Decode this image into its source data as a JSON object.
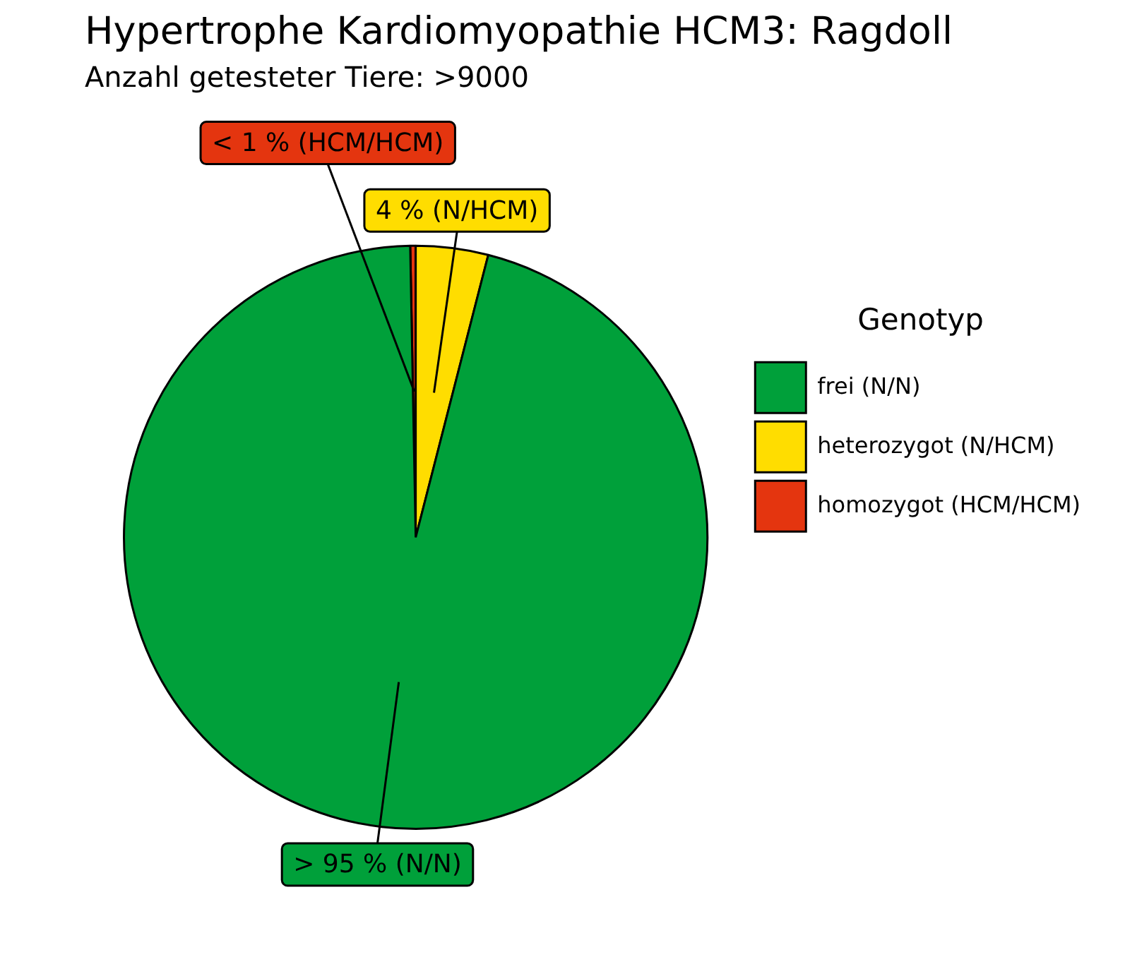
{
  "chart_data": {
    "type": "pie",
    "title": "Hypertrophe Kardiomyopathie HCM3: Ragdoll",
    "subtitle": "Anzahl getesteter Tiere: >9000",
    "legend_title": "Genotyp",
    "legend": "right",
    "categories": [
      "frei (N/N)",
      "heterozygot (N/HCM)",
      "homozygot (HCM/HCM)"
    ],
    "values": [
      95.7,
      4,
      0.3
    ],
    "colors": [
      "#00a03a",
      "#ffdd00",
      "#e4350f"
    ],
    "value_labels": [
      "> 95 % (N/N)",
      "4 % (N/HCM)",
      "< 1 % (HCM/HCM)"
    ]
  }
}
